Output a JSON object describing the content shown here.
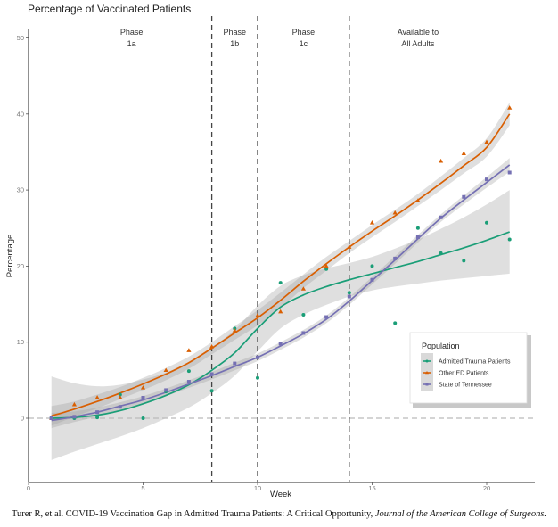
{
  "caption": {
    "text": "Turer R, et al. COVID-19 Vaccination Gap in Admitted Trauma Patients: A Critical Opportunity, ",
    "journal": "Journal of the American College of Surgeons."
  },
  "chart_data": {
    "type": "scatter",
    "title": "Percentage of Vaccinated Patients",
    "xlabel": "Week",
    "ylabel": "Percentage",
    "xlim": [
      0,
      22
    ],
    "ylim": [
      -8,
      52
    ],
    "x_ticks": [
      0,
      5,
      10,
      15,
      20
    ],
    "y_ticks": [
      0,
      10,
      20,
      30,
      40,
      50
    ],
    "grid": false,
    "reference_line": {
      "y": 0,
      "style": "dashed",
      "color": "#bbbbbb"
    },
    "phase_lines": [
      8,
      10,
      14
    ],
    "phase_labels": [
      {
        "line1": "Phase",
        "line2": "1a",
        "x_center": 4.5
      },
      {
        "line1": "Phase",
        "line2": "1b",
        "x_center": 9
      },
      {
        "line1": "Phase",
        "line2": "1c",
        "x_center": 12
      },
      {
        "line1": "Available to",
        "line2": "All Adults",
        "x_center": 17
      }
    ],
    "legend": {
      "title": "Population",
      "placement": "bottom-right"
    },
    "x": [
      1,
      2,
      3,
      4,
      5,
      6,
      7,
      8,
      9,
      10,
      11,
      12,
      13,
      14,
      15,
      16,
      17,
      18,
      19,
      20,
      21
    ],
    "series": [
      {
        "name": "Admitted Trauma Patients",
        "color": "#1a9e77",
        "marker": "circle",
        "values": [
          0,
          0,
          0.1,
          3.1,
          0,
          3.5,
          6.2,
          3.6,
          11.8,
          5.3,
          17.8,
          13.6,
          19.6,
          16.5,
          20.0,
          12.5,
          25.0,
          21.7,
          20.7,
          25.7,
          23.5
        ],
        "fit": [
          0,
          0.1,
          0.4,
          1.0,
          1.9,
          3.0,
          4.4,
          6.3,
          8.6,
          11.8,
          14.6,
          16.2,
          17.3,
          18.2,
          19.0,
          19.8,
          20.6,
          21.5,
          22.4,
          23.4,
          24.5
        ],
        "ci_halfwidth": [
          5.5,
          4.5,
          3.8,
          3.4,
          3.2,
          3.0,
          3.0,
          3.0,
          3.0,
          3.0,
          2.8,
          2.6,
          2.4,
          2.2,
          2.2,
          2.5,
          2.9,
          3.4,
          4.0,
          4.7,
          5.5
        ]
      },
      {
        "name": "Other ED Patients",
        "color": "#d95f02",
        "marker": "triangle",
        "values": [
          0,
          1.8,
          2.7,
          2.7,
          4.0,
          6.3,
          8.9,
          9.4,
          11.5,
          13.5,
          14.0,
          17.0,
          20.0,
          22.5,
          25.7,
          27.0,
          28.6,
          33.8,
          34.8,
          36.3,
          40.8
        ],
        "fit": [
          0.3,
          1.2,
          2.2,
          3.3,
          4.5,
          5.8,
          7.3,
          9.2,
          11.2,
          13.2,
          15.5,
          18.0,
          20.3,
          22.5,
          24.6,
          26.6,
          28.7,
          30.9,
          33.2,
          35.6,
          40.0
        ],
        "ci_halfwidth": [
          1.3,
          1.0,
          0.9,
          0.8,
          0.8,
          0.8,
          0.8,
          0.8,
          0.9,
          1.0,
          1.0,
          0.9,
          0.9,
          0.8,
          0.8,
          0.8,
          0.8,
          0.9,
          1.0,
          1.2,
          1.5
        ]
      },
      {
        "name": "State of Tennessee",
        "color": "#7570b3",
        "marker": "square",
        "values": [
          0,
          0.2,
          0.8,
          1.5,
          2.7,
          3.7,
          4.8,
          5.8,
          7.2,
          8.0,
          9.8,
          11.2,
          13.3,
          16.0,
          18.2,
          21.0,
          23.8,
          26.4,
          29.1,
          31.4,
          32.3
        ],
        "fit": [
          -0.3,
          0.2,
          0.8,
          1.6,
          2.4,
          3.4,
          4.5,
          5.6,
          6.8,
          8.0,
          9.5,
          11.1,
          13.0,
          15.4,
          18.1,
          20.8,
          23.6,
          26.3,
          28.7,
          31.0,
          33.3
        ],
        "ci_halfwidth": [
          1.0,
          0.7,
          0.6,
          0.5,
          0.5,
          0.5,
          0.5,
          0.5,
          0.5,
          0.5,
          0.5,
          0.5,
          0.5,
          0.5,
          0.5,
          0.5,
          0.5,
          0.5,
          0.6,
          0.7,
          0.9
        ]
      }
    ]
  }
}
